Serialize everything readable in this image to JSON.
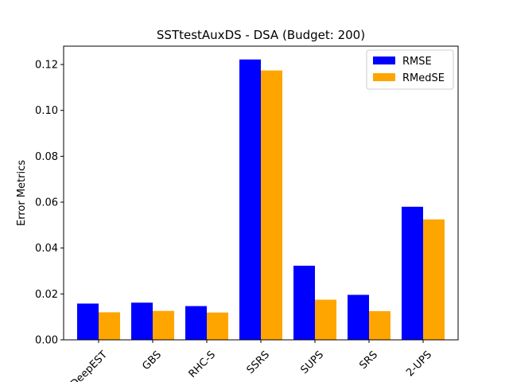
{
  "chart_data": {
    "type": "bar",
    "title": "SSTtestAuxDS - DSA (Budget: 200)",
    "xlabel": "",
    "ylabel": "Error Metrics",
    "categories": [
      "DeepEST",
      "GBS",
      "RHC-S",
      "SSRS",
      "SUPS",
      "SRS",
      "2-UPS"
    ],
    "series": [
      {
        "name": "RMSE",
        "color": "#0000ff",
        "values": [
          0.0158,
          0.0162,
          0.0147,
          0.1222,
          0.0323,
          0.0196,
          0.058
        ]
      },
      {
        "name": "RMedSE",
        "color": "#ffa500",
        "values": [
          0.012,
          0.0126,
          0.0119,
          0.1174,
          0.0175,
          0.0125,
          0.0525
        ]
      }
    ],
    "ylim": [
      0,
      0.128
    ],
    "yticks": [
      "0.00",
      "0.02",
      "0.04",
      "0.06",
      "0.08",
      "0.10",
      "0.12"
    ],
    "ytick_values": [
      0,
      0.02,
      0.04,
      0.06,
      0.08,
      0.1,
      0.12
    ],
    "xtick_rotation": 45,
    "grid": false,
    "legend_position": "top-right"
  }
}
